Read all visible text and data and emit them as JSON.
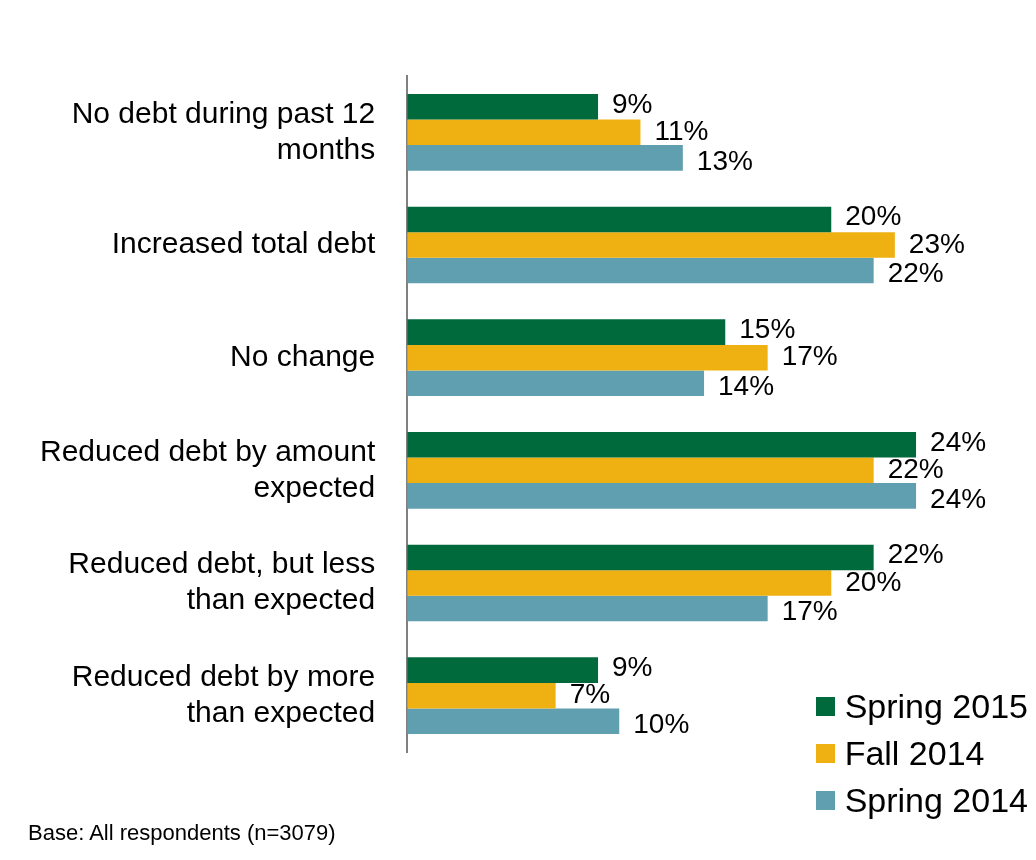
{
  "chart_data": {
    "type": "bar",
    "orientation": "horizontal",
    "categories": [
      "No debt during past 12 months",
      "Increased total debt",
      "No change",
      "Reduced debt by amount expected",
      "Reduced debt, but less than expected",
      "Reduced debt by more than expected"
    ],
    "series": [
      {
        "name": "Spring 2015",
        "color": "#006a3c",
        "values": [
          9,
          20,
          15,
          24,
          22,
          9
        ],
        "value_labels": [
          "9%",
          "20%",
          "15%",
          "24%",
          "22%",
          "9%"
        ]
      },
      {
        "name": "Fall 2014",
        "color": "#efb111",
        "values": [
          11,
          23,
          17,
          22,
          20,
          7
        ],
        "value_labels": [
          "11%",
          "23%",
          "17%",
          "22%",
          "20%",
          "7%"
        ]
      },
      {
        "name": "Spring 2014",
        "color": "#609faf",
        "values": [
          13,
          22,
          14,
          24,
          17,
          10
        ],
        "value_labels": [
          "13%",
          "22%",
          "14%",
          "24%",
          "17%",
          "10%"
        ]
      }
    ],
    "legend": "bottom right",
    "annotations": [
      "Base: All respondents (n=3079)"
    ]
  }
}
